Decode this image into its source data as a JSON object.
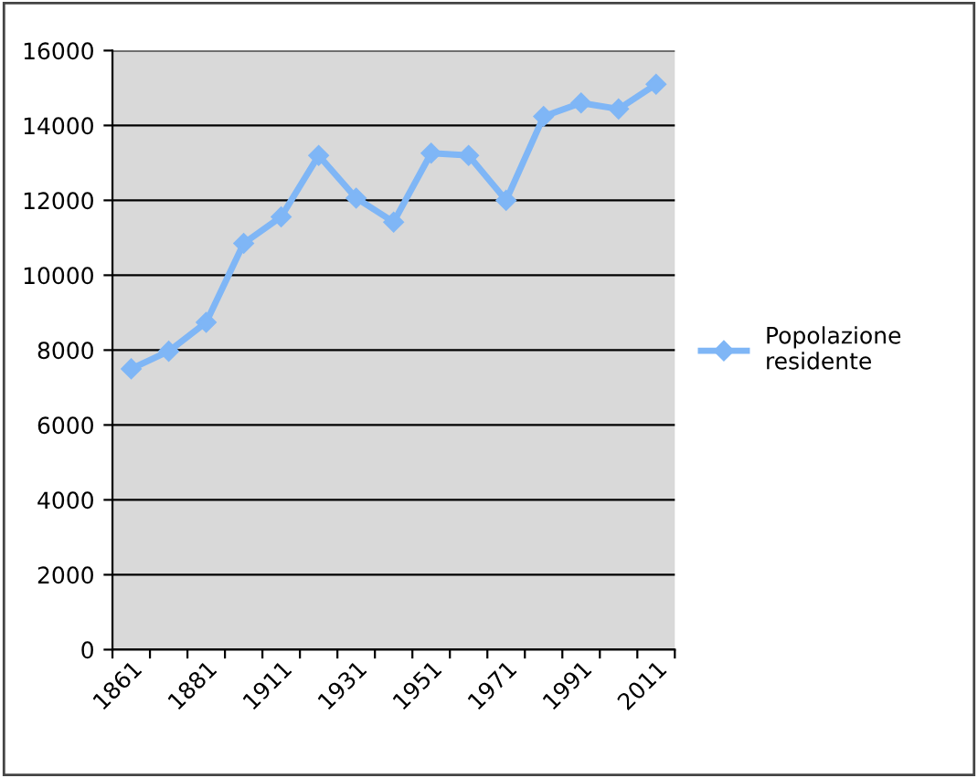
{
  "chart_data": {
    "type": "line",
    "categories": [
      "1861",
      null,
      "1881",
      null,
      "1911",
      null,
      "1931",
      null,
      "1951",
      null,
      "1971",
      null,
      "1991",
      null,
      "2011"
    ],
    "series": [
      {
        "name": "Popolazione residente",
        "color": "#7fb6f6",
        "values": [
          7500,
          7970,
          8740,
          10850,
          11560,
          13200,
          12060,
          11420,
          13260,
          13200,
          12000,
          14240,
          14600,
          14440,
          15100
        ]
      }
    ],
    "ylim": [
      0,
      16000
    ],
    "yticks": [
      0,
      2000,
      4000,
      6000,
      8000,
      10000,
      12000,
      14000,
      16000
    ],
    "grid": "y",
    "legend": "right",
    "marker": "diamond",
    "line_style": "solid"
  }
}
